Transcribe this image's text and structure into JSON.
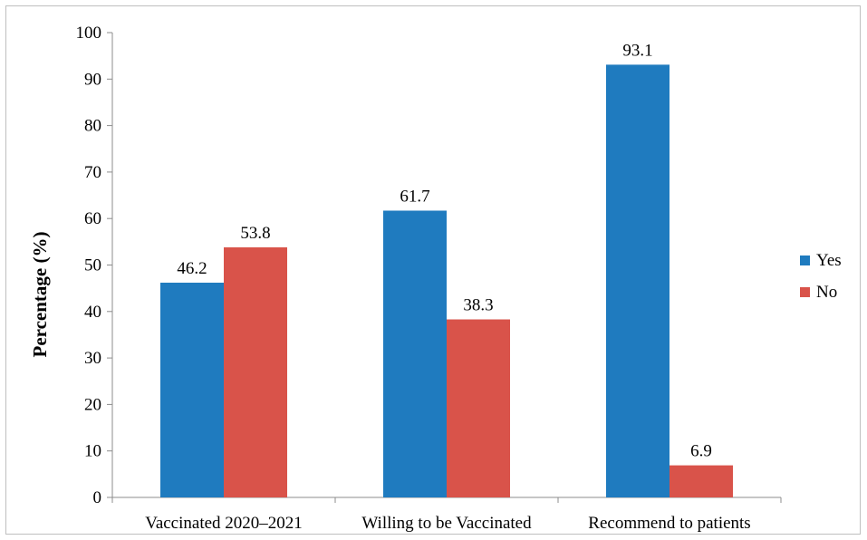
{
  "chart_data": {
    "type": "bar",
    "categories": [
      "Vaccinated 2020–2021",
      "Willing to be Vaccinated",
      "Recommend to patients"
    ],
    "series": [
      {
        "name": "Yes",
        "values": [
          46.2,
          61.7,
          93.1
        ],
        "color": "#1f7bbf"
      },
      {
        "name": "No",
        "values": [
          53.8,
          38.3,
          6.9
        ],
        "color": "#d9534a"
      }
    ],
    "xlabel": "",
    "ylabel": "Percentage (%)",
    "ylim": [
      0,
      100
    ],
    "yticks": [
      0,
      10,
      20,
      30,
      40,
      50,
      60,
      70,
      80,
      90,
      100
    ],
    "data_labels": true,
    "grid": false,
    "legend_position": "right"
  }
}
